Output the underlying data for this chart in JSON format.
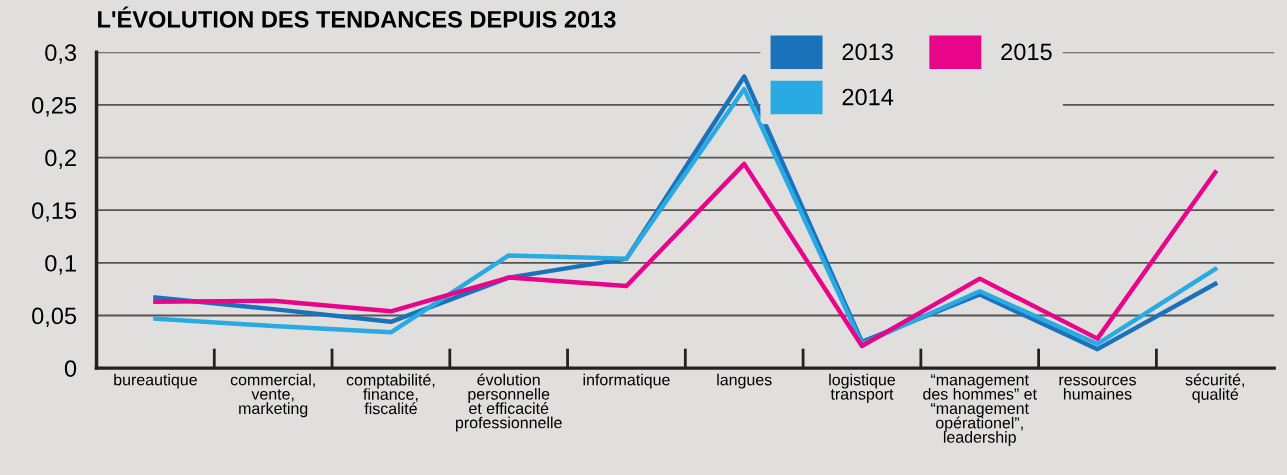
{
  "chart_data": {
    "type": "line",
    "title": "L'ÉVOLUTION DES TENDANCES DEPUIS 2013",
    "categories": [
      "bureautique",
      "commercial,\nvente,\nmarketing",
      "comptabilité,\nfinance,\nfiscalité",
      "évolution\npersonnelle\net efficacité\nprofessionnelle",
      "informatique",
      "langues",
      "logistique\ntransport",
      "“management\ndes hommes” et\n“management\nopérationel”,\nleadership",
      "ressources\nhumaines",
      "sécurité,\nqualité"
    ],
    "series": [
      {
        "name": "2013",
        "color": "#1a72bb",
        "values": [
          0.067,
          0.056,
          0.044,
          0.086,
          0.104,
          0.277,
          0.025,
          0.07,
          0.018,
          0.08
        ]
      },
      {
        "name": "2014",
        "color": "#29aae2",
        "values": [
          0.047,
          0.04,
          0.034,
          0.107,
          0.104,
          0.265,
          0.023,
          0.073,
          0.023,
          0.094
        ]
      },
      {
        "name": "2015",
        "color": "#e8058a",
        "values": [
          0.063,
          0.064,
          0.054,
          0.086,
          0.078,
          0.194,
          0.021,
          0.085,
          0.028,
          0.186
        ]
      }
    ],
    "ylim": [
      0,
      0.3
    ],
    "yticks": [
      {
        "value": 0,
        "label": "0"
      },
      {
        "value": 0.05,
        "label": "0,05"
      },
      {
        "value": 0.1,
        "label": "0,1"
      },
      {
        "value": 0.15,
        "label": "0,15"
      },
      {
        "value": 0.2,
        "label": "0,2"
      },
      {
        "value": 0.25,
        "label": "0,25"
      },
      {
        "value": 0.3,
        "label": "0,3"
      }
    ],
    "grid": "y",
    "legend": "top right",
    "marker": "none",
    "line_style": "solid"
  }
}
